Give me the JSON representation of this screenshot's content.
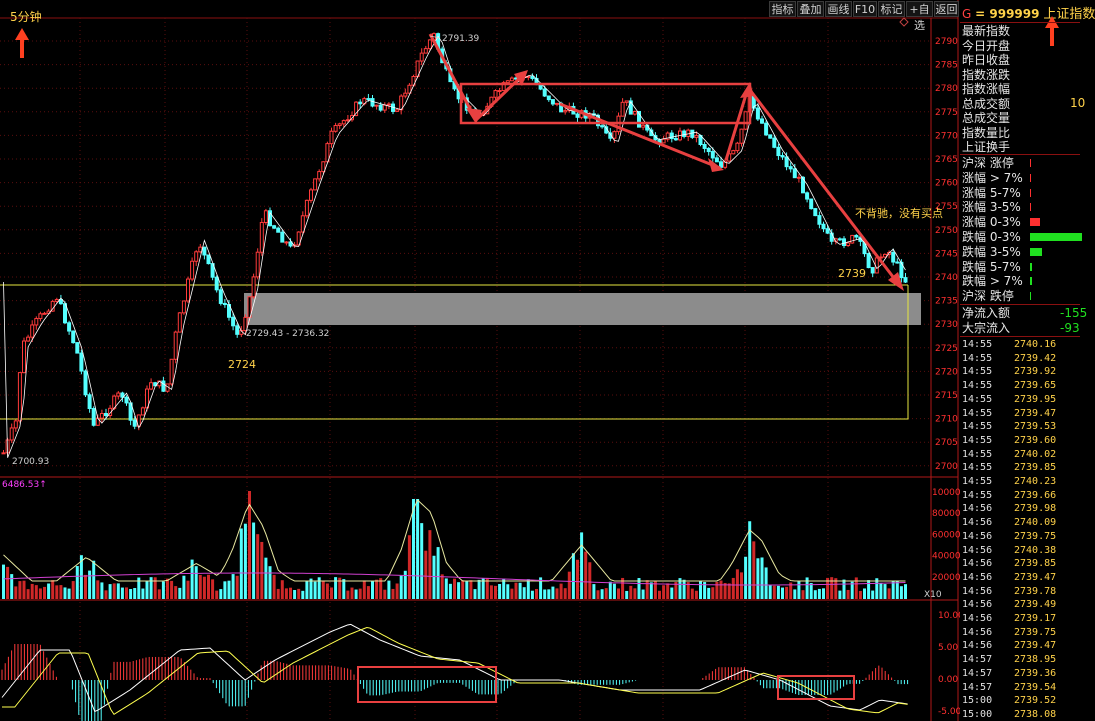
{
  "header": {
    "period_label": "5分钟",
    "toolbar": [
      "指标",
      "叠加",
      "画线",
      "F10",
      "标记",
      "+自选",
      "返回"
    ],
    "code_prefix": "G",
    "code": "= 999999",
    "name": "上证指数"
  },
  "price_axis": [
    "2790",
    "2785",
    "2780",
    "2775",
    "2770",
    "2765",
    "2760",
    "2755",
    "2750",
    "2745",
    "2740",
    "2735",
    "2730",
    "2725",
    "2720",
    "2715",
    "2710",
    "2705",
    "2700"
  ],
  "volume_axis": [
    "100000",
    "80000",
    "60000",
    "40000",
    "20000"
  ],
  "volume_unit": "X10",
  "volume_label": "6486.53↑",
  "macd_axis": [
    "10.00",
    "5.00",
    "0.00",
    "-5.00"
  ],
  "annotations": {
    "high": "2791.39",
    "low": "2700.93",
    "gap_range": "2729.43 - 2736.32",
    "mark_2724": "2724",
    "mark_2739": "2739",
    "note": "不背驰，没有买点"
  },
  "info_labels": [
    "最新指数",
    "今日开盘",
    "昨日收盘",
    "指数涨跌",
    "指数涨幅",
    "总成交额",
    "总成交量",
    "指数量比",
    "上证换手"
  ],
  "info_partial_value": "10",
  "breadth_labels": [
    "沪深 涨停",
    "涨幅 > 7%",
    "涨幅 5-7%",
    "涨幅 3-5%",
    "涨幅 0-3%",
    "跌幅 0-3%",
    "跌幅 3-5%",
    "跌幅 5-7%",
    "跌幅 > 7%",
    "沪深 跌停"
  ],
  "flow": [
    {
      "label": "净流入额",
      "value": "-155"
    },
    {
      "label": "大宗流入",
      "value": "-93"
    }
  ],
  "ticks": [
    {
      "time": "14:55",
      "price": "2740.16"
    },
    {
      "time": "14:55",
      "price": "2739.42"
    },
    {
      "time": "14:55",
      "price": "2739.92"
    },
    {
      "time": "14:55",
      "price": "2739.65"
    },
    {
      "time": "14:55",
      "price": "2739.95"
    },
    {
      "time": "14:55",
      "price": "2739.47"
    },
    {
      "time": "14:55",
      "price": "2739.53"
    },
    {
      "time": "14:55",
      "price": "2739.60"
    },
    {
      "time": "14:55",
      "price": "2740.02"
    },
    {
      "time": "14:55",
      "price": "2739.85"
    },
    {
      "time": "14:55",
      "price": "2740.23"
    },
    {
      "time": "14:55",
      "price": "2739.66"
    },
    {
      "time": "14:56",
      "price": "2739.98"
    },
    {
      "time": "14:56",
      "price": "2740.09"
    },
    {
      "time": "14:56",
      "price": "2739.75"
    },
    {
      "time": "14:56",
      "price": "2740.38"
    },
    {
      "time": "14:56",
      "price": "2739.85"
    },
    {
      "time": "14:56",
      "price": "2739.47"
    },
    {
      "time": "14:56",
      "price": "2739.78"
    },
    {
      "time": "14:56",
      "price": "2739.49"
    },
    {
      "time": "14:56",
      "price": "2739.17"
    },
    {
      "time": "14:56",
      "price": "2739.75"
    },
    {
      "time": "14:56",
      "price": "2739.47"
    },
    {
      "time": "14:57",
      "price": "2738.95"
    },
    {
      "time": "14:57",
      "price": "2739.36"
    },
    {
      "time": "14:57",
      "price": "2739.54"
    },
    {
      "time": "15:00",
      "price": "2739.52"
    },
    {
      "time": "15:00",
      "price": "2738.08"
    }
  ],
  "colors": {
    "up": "#ff3b3b",
    "down": "#54ffff",
    "ma5": "#ffffff",
    "ma10": "#ffff3c",
    "ma20": "#ff40ff",
    "annotation": "#e84040",
    "axis": "#ff3030",
    "text_yellow": "#ffd24a"
  }
}
